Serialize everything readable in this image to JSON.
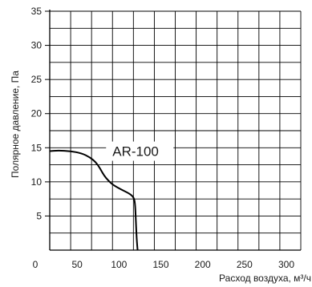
{
  "chart_data": {
    "type": "line",
    "title": "",
    "xlabel": "Расход воздуха, м³/ч",
    "ylabel": "Полярное давление, Па",
    "xlim": [
      0,
      300
    ],
    "ylim": [
      0,
      35
    ],
    "xticks": [
      "0",
      "50",
      "100",
      "150",
      "200",
      "250",
      "300"
    ],
    "yticks": [
      "5",
      "10",
      "15",
      "20",
      "25",
      "30",
      "35"
    ],
    "grid": true,
    "legend": "none",
    "series": [
      {
        "name": "AR-100",
        "color": "#000000",
        "x": [
          0,
          10,
          25,
          38,
          48,
          55,
          60,
          65,
          70,
          75,
          85,
          95,
          100,
          102,
          103,
          104,
          105
        ],
        "y": [
          14.5,
          14.6,
          14.5,
          14.2,
          13.6,
          12.9,
          12.0,
          10.9,
          10.2,
          9.6,
          8.9,
          8.3,
          7.8,
          7.0,
          4.0,
          1.5,
          0
        ]
      }
    ]
  }
}
